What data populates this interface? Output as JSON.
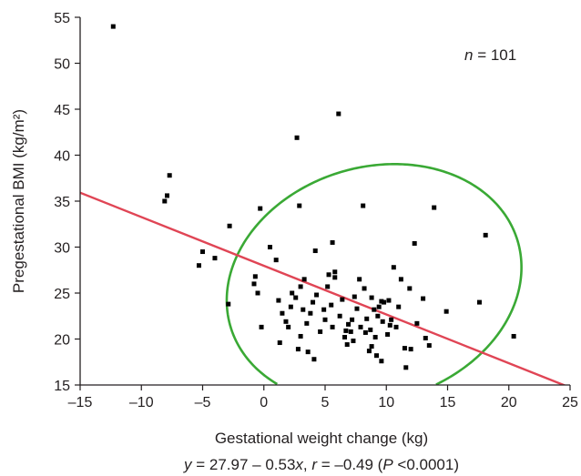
{
  "chart_data": {
    "type": "scatter",
    "xlabel": "Gestational weight change (kg)",
    "ylabel": "Pregestational BMI (kg/m²)",
    "xlim": [
      -15,
      25
    ],
    "ylim": [
      15,
      55
    ],
    "x_ticks": [
      -15,
      -10,
      -5,
      0,
      5,
      10,
      15,
      20,
      25
    ],
    "x_tick_labels": [
      "–15",
      "–10",
      "–5",
      "0",
      "5",
      "10",
      "15",
      "20",
      "25"
    ],
    "y_ticks": [
      15,
      20,
      25,
      30,
      35,
      40,
      45,
      50,
      55
    ],
    "y_tick_labels": [
      "15",
      "20",
      "25",
      "30",
      "35",
      "40",
      "45",
      "50",
      "55"
    ],
    "grid": false,
    "annotation": {
      "var": "n",
      "text": " = 101"
    },
    "caption": {
      "y": "y",
      "eq": " = 27.97 – 0.53",
      "x": "x",
      "comma": ", ",
      "r": "r",
      "rval": " = –0.49 (",
      "p": "P",
      "pval": " <0.0001)"
    },
    "colors": {
      "points": "#000000",
      "regression_line": "#e04555",
      "ellipse": "#3aa935",
      "axes": "#231f20"
    },
    "regression": {
      "intercept": 27.97,
      "slope": -0.53,
      "x_range": [
        -15,
        25
      ]
    },
    "ellipse": {
      "center": [
        9,
        26
      ],
      "semi_axes": [
        11.5,
        13.5
      ],
      "rotation_deg": -30,
      "visible_y_min": 15
    },
    "points": [
      [
        -12.3,
        54.0
      ],
      [
        -7.7,
        37.8
      ],
      [
        -7.9,
        35.6
      ],
      [
        -8.1,
        35.0
      ],
      [
        -5.0,
        29.5
      ],
      [
        -4.0,
        28.8
      ],
      [
        -5.3,
        28.0
      ],
      [
        -2.8,
        32.3
      ],
      [
        -2.9,
        23.8
      ],
      [
        -0.3,
        34.2
      ],
      [
        -0.7,
        26.8
      ],
      [
        -0.8,
        26.0
      ],
      [
        -0.5,
        25.0
      ],
      [
        -0.2,
        21.3
      ],
      [
        0.5,
        30.0
      ],
      [
        1.0,
        28.6
      ],
      [
        1.2,
        24.2
      ],
      [
        1.5,
        22.8
      ],
      [
        1.8,
        21.9
      ],
      [
        2.0,
        21.3
      ],
      [
        2.3,
        25.0
      ],
      [
        2.6,
        24.5
      ],
      [
        2.7,
        41.9
      ],
      [
        2.9,
        34.5
      ],
      [
        3.0,
        25.7
      ],
      [
        3.3,
        26.5
      ],
      [
        3.2,
        23.2
      ],
      [
        3.0,
        20.3
      ],
      [
        2.8,
        18.9
      ],
      [
        3.6,
        18.6
      ],
      [
        3.5,
        21.7
      ],
      [
        4.0,
        24.0
      ],
      [
        4.3,
        24.8
      ],
      [
        4.2,
        29.6
      ],
      [
        4.6,
        20.8
      ],
      [
        4.9,
        23.2
      ],
      [
        5.0,
        22.1
      ],
      [
        5.2,
        25.7
      ],
      [
        5.5,
        23.7
      ],
      [
        5.6,
        21.3
      ],
      [
        5.6,
        30.5
      ],
      [
        5.8,
        26.7
      ],
      [
        5.8,
        27.3
      ],
      [
        6.1,
        44.5
      ],
      [
        6.2,
        22.5
      ],
      [
        6.4,
        24.3
      ],
      [
        6.6,
        20.2
      ],
      [
        6.8,
        19.4
      ],
      [
        6.9,
        21.6
      ],
      [
        7.1,
        20.8
      ],
      [
        7.2,
        22.1
      ],
      [
        7.3,
        19.8
      ],
      [
        7.6,
        23.3
      ],
      [
        7.8,
        26.5
      ],
      [
        7.9,
        21.3
      ],
      [
        8.1,
        34.5
      ],
      [
        8.2,
        25.5
      ],
      [
        8.3,
        20.7
      ],
      [
        8.4,
        22.2
      ],
      [
        8.6,
        18.7
      ],
      [
        8.7,
        21.0
      ],
      [
        8.8,
        24.5
      ],
      [
        9.0,
        23.2
      ],
      [
        9.1,
        20.2
      ],
      [
        9.3,
        22.5
      ],
      [
        9.4,
        23.5
      ],
      [
        9.6,
        24.1
      ],
      [
        9.7,
        21.9
      ],
      [
        9.8,
        24.0
      ],
      [
        9.6,
        17.6
      ],
      [
        10.1,
        20.5
      ],
      [
        10.3,
        21.5
      ],
      [
        10.4,
        22.1
      ],
      [
        10.2,
        24.2
      ],
      [
        10.6,
        27.8
      ],
      [
        10.8,
        21.3
      ],
      [
        11.0,
        23.5
      ],
      [
        11.2,
        26.5
      ],
      [
        11.5,
        19.0
      ],
      [
        11.6,
        16.9
      ],
      [
        11.9,
        25.5
      ],
      [
        12.0,
        18.9
      ],
      [
        12.3,
        30.4
      ],
      [
        12.5,
        21.7
      ],
      [
        13.0,
        24.4
      ],
      [
        13.5,
        19.3
      ],
      [
        13.9,
        34.3
      ],
      [
        14.9,
        23.0
      ],
      [
        17.6,
        24.0
      ],
      [
        18.1,
        31.3
      ],
      [
        20.4,
        20.3
      ],
      [
        1.3,
        19.6
      ],
      [
        4.1,
        17.8
      ],
      [
        6.7,
        20.9
      ],
      [
        8.8,
        19.2
      ],
      [
        9.2,
        18.2
      ],
      [
        13.2,
        20.1
      ],
      [
        2.2,
        23.5
      ],
      [
        7.4,
        24.6
      ],
      [
        5.3,
        27.0
      ],
      [
        3.8,
        22.8
      ]
    ]
  }
}
